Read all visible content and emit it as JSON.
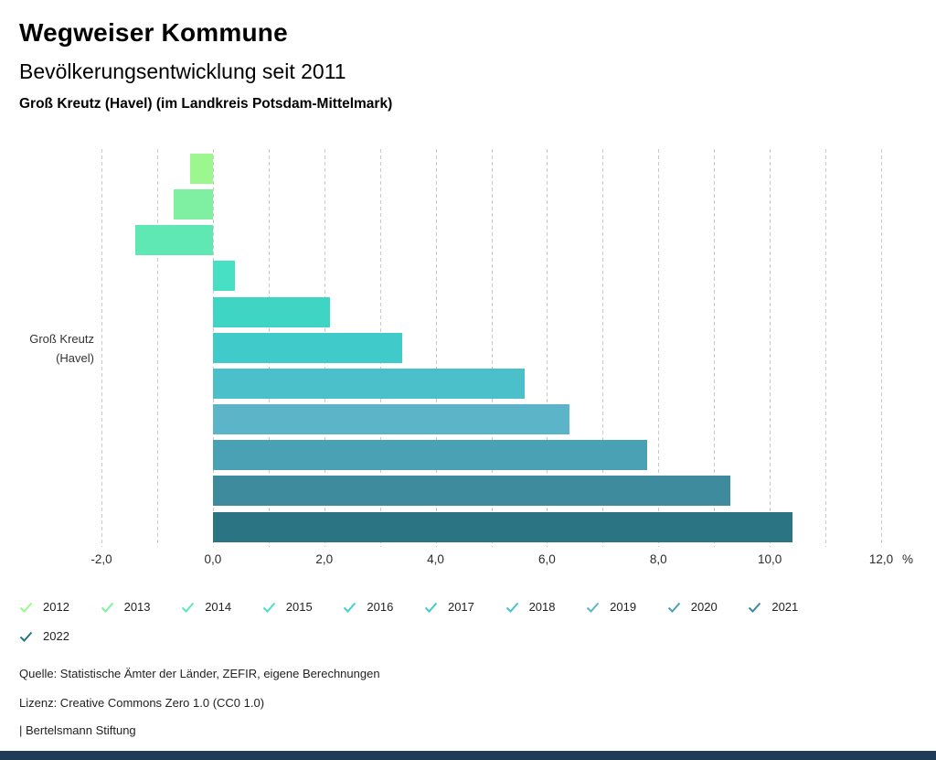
{
  "header": {
    "title": "Wegweiser Kommune",
    "subtitle": "Bevölkerungsentwicklung seit 2011",
    "region_line": "Groß Kreutz (Havel) (im Landkreis Potsdam-Mittelmark)"
  },
  "chart_data": {
    "type": "bar",
    "orientation": "horizontal",
    "title": "Bevölkerungsentwicklung seit 2011",
    "group_label_lines": [
      "Groß Kreutz",
      "(Havel)"
    ],
    "categories": [
      "2012",
      "2013",
      "2014",
      "2015",
      "2016",
      "2017",
      "2018",
      "2019",
      "2020",
      "2021",
      "2022"
    ],
    "values": [
      -0.4,
      -0.7,
      -1.4,
      0.4,
      2.1,
      3.4,
      5.6,
      6.4,
      7.8,
      9.3,
      10.4
    ],
    "colors": [
      "#9cf88e",
      "#7ff0a2",
      "#60e8b4",
      "#47e0c4",
      "#3fd5c5",
      "#40cbca",
      "#4bc0ca",
      "#5cb4c8",
      "#4ba1b4",
      "#3d8b9c",
      "#2a7484"
    ],
    "unit_label": "%",
    "x_ticks": [
      -2,
      0,
      2,
      4,
      6,
      8,
      10,
      12
    ],
    "x_tick_labels": [
      "-2,0",
      "0,0",
      "2,0",
      "4,0",
      "6,0",
      "8,0",
      "10,0",
      "12,0"
    ],
    "xlim": [
      -2,
      12
    ],
    "gridline_values": [
      -2,
      -1,
      0,
      1,
      2,
      3,
      4,
      5,
      6,
      7,
      8,
      9,
      10,
      11,
      12
    ],
    "grid": "vertical-dotted",
    "legend_position": "bottom"
  },
  "footer": {
    "source": "Quelle: Statistische Ämter der Länder, ZEFIR, eigene Berechnungen",
    "license": "Lizenz: Creative Commons Zero 1.0 (CC0 1.0)",
    "publisher": "| Bertelsmann Stiftung"
  },
  "colors": {
    "grid": "#c9c9c9",
    "axis_text": "#2b2b2b",
    "brand_bar": "#1e3c58"
  }
}
